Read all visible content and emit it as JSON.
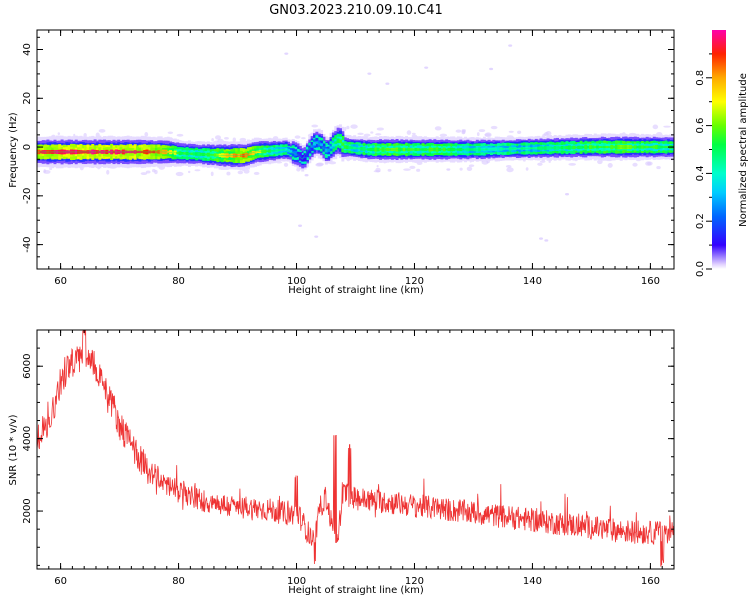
{
  "title": "GN03.2023.210.09.10.C41",
  "chart_data": [
    {
      "type": "heatmap",
      "xlabel": "Height of straight line (km)",
      "ylabel": "Frequency (Hz)",
      "xlim": [
        56,
        164
      ],
      "ylim": [
        -50,
        48
      ],
      "xticks": [
        60,
        80,
        100,
        120,
        140,
        160
      ],
      "yticks": [
        -40,
        -20,
        0,
        20,
        40
      ],
      "colorbar": {
        "label": "Normalized spectral amplitude",
        "range": [
          0,
          1
        ],
        "ticks": [
          0.0,
          0.2,
          0.4,
          0.6,
          0.8
        ],
        "colormap": "gist_ncar"
      },
      "ridge": [
        {
          "x": 56,
          "y": -2
        },
        {
          "x": 60,
          "y": -2
        },
        {
          "x": 65,
          "y": -2
        },
        {
          "x": 70,
          "y": -2
        },
        {
          "x": 75,
          "y": -2
        },
        {
          "x": 78,
          "y": -2
        },
        {
          "x": 80,
          "y": -2.5
        },
        {
          "x": 84,
          "y": -3
        },
        {
          "x": 88,
          "y": -3.5
        },
        {
          "x": 91,
          "y": -3.5
        },
        {
          "x": 93,
          "y": -2
        },
        {
          "x": 96,
          "y": -1.5
        },
        {
          "x": 98,
          "y": -1
        },
        {
          "x": 100,
          "y": -3
        },
        {
          "x": 101,
          "y": -5
        },
        {
          "x": 102,
          "y": -1
        },
        {
          "x": 103,
          "y": 2
        },
        {
          "x": 104,
          "y": 1
        },
        {
          "x": 105,
          "y": -2
        },
        {
          "x": 106,
          "y": 1
        },
        {
          "x": 107,
          "y": 3
        },
        {
          "x": 108,
          "y": 0
        },
        {
          "x": 112,
          "y": -1
        },
        {
          "x": 120,
          "y": -1
        },
        {
          "x": 130,
          "y": -1
        },
        {
          "x": 140,
          "y": -0.5
        },
        {
          "x": 150,
          "y": 0
        },
        {
          "x": 160,
          "y": 0
        },
        {
          "x": 164,
          "y": 0
        }
      ],
      "intensity": [
        {
          "x": 56,
          "v": 0.9
        },
        {
          "x": 60,
          "v": 0.95
        },
        {
          "x": 65,
          "v": 0.95
        },
        {
          "x": 70,
          "v": 0.95
        },
        {
          "x": 75,
          "v": 0.9
        },
        {
          "x": 78,
          "v": 0.8
        },
        {
          "x": 80,
          "v": 0.55
        },
        {
          "x": 84,
          "v": 0.5
        },
        {
          "x": 88,
          "v": 0.75
        },
        {
          "x": 91,
          "v": 0.85
        },
        {
          "x": 93,
          "v": 0.7
        },
        {
          "x": 96,
          "v": 0.45
        },
        {
          "x": 98,
          "v": 0.4
        },
        {
          "x": 100,
          "v": 0.2
        },
        {
          "x": 101,
          "v": 0.15
        },
        {
          "x": 103,
          "v": 0.3
        },
        {
          "x": 105,
          "v": 0.25
        },
        {
          "x": 107,
          "v": 0.55
        },
        {
          "x": 110,
          "v": 0.45
        },
        {
          "x": 115,
          "v": 0.6
        },
        {
          "x": 120,
          "v": 0.55
        },
        {
          "x": 125,
          "v": 0.55
        },
        {
          "x": 130,
          "v": 0.45
        },
        {
          "x": 135,
          "v": 0.4
        },
        {
          "x": 140,
          "v": 0.45
        },
        {
          "x": 145,
          "v": 0.5
        },
        {
          "x": 150,
          "v": 0.55
        },
        {
          "x": 155,
          "v": 0.6
        },
        {
          "x": 160,
          "v": 0.55
        },
        {
          "x": 164,
          "v": 0.5
        }
      ]
    },
    {
      "type": "line",
      "xlabel": "Height of straight line (km)",
      "ylabel": "SNR (10 * v/v)",
      "xlim": [
        56,
        164
      ],
      "ylim": [
        400,
        7000
      ],
      "xticks": [
        60,
        80,
        100,
        120,
        140,
        160
      ],
      "yticks": [
        2000,
        4000,
        6000
      ],
      "series": [
        {
          "color": "#ee3333",
          "envelope": [
            {
              "x": 56,
              "y": 4000
            },
            {
              "x": 58,
              "y": 4400
            },
            {
              "x": 60,
              "y": 5600
            },
            {
              "x": 62,
              "y": 6100
            },
            {
              "x": 64,
              "y": 6300
            },
            {
              "x": 66,
              "y": 6000
            },
            {
              "x": 68,
              "y": 5300
            },
            {
              "x": 70,
              "y": 4400
            },
            {
              "x": 72,
              "y": 3800
            },
            {
              "x": 75,
              "y": 3100
            },
            {
              "x": 80,
              "y": 2500
            },
            {
              "x": 85,
              "y": 2250
            },
            {
              "x": 90,
              "y": 2100
            },
            {
              "x": 95,
              "y": 2050
            },
            {
              "x": 99,
              "y": 1900
            },
            {
              "x": 100,
              "y": 2000
            },
            {
              "x": 102,
              "y": 1400
            },
            {
              "x": 103,
              "y": 1100
            },
            {
              "x": 104,
              "y": 2100
            },
            {
              "x": 105,
              "y": 2400
            },
            {
              "x": 106,
              "y": 1600
            },
            {
              "x": 107,
              "y": 1300
            },
            {
              "x": 108,
              "y": 2500
            },
            {
              "x": 110,
              "y": 2350
            },
            {
              "x": 115,
              "y": 2250
            },
            {
              "x": 120,
              "y": 2150
            },
            {
              "x": 125,
              "y": 2050
            },
            {
              "x": 130,
              "y": 1950
            },
            {
              "x": 135,
              "y": 1850
            },
            {
              "x": 140,
              "y": 1750
            },
            {
              "x": 145,
              "y": 1650
            },
            {
              "x": 150,
              "y": 1550
            },
            {
              "x": 155,
              "y": 1450
            },
            {
              "x": 160,
              "y": 1400
            },
            {
              "x": 164,
              "y": 1450
            }
          ],
          "peaks": [
            {
              "x": 64,
              "y": 7000
            },
            {
              "x": 100,
              "y": 2950
            },
            {
              "x": 106.5,
              "y": 4050
            },
            {
              "x": 109,
              "y": 3750
            },
            {
              "x": 103,
              "y": 600
            },
            {
              "x": 162,
              "y": 550
            }
          ]
        }
      ]
    }
  ]
}
